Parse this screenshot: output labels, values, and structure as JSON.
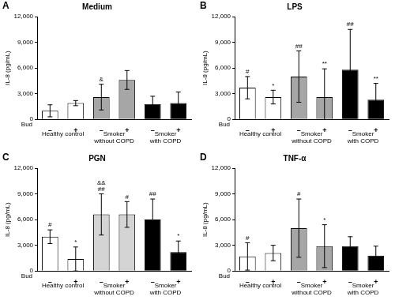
{
  "chart_data": [
    {
      "type": "bar",
      "panel": "A",
      "title": "Medium",
      "y_label": "IL-8 (pg/mL)",
      "x_label": "Bud",
      "categories": [
        "–",
        "+",
        "–",
        "+",
        "–",
        "+"
      ],
      "groups": [
        [
          "Healthy control"
        ],
        [
          "Smoker",
          "without COPD"
        ],
        [
          "Smoker",
          "with COPD"
        ]
      ],
      "values": [
        1000,
        1900,
        2600,
        4600,
        1800,
        1900
      ],
      "errors": [
        700,
        300,
        1500,
        1100,
        900,
        1300
      ],
      "annotations": [
        [],
        [],
        [
          "&"
        ],
        [],
        [],
        []
      ],
      "colors": [
        "#ffffff",
        "#ffffff",
        "#a6a6a6",
        "#a6a6a6",
        "#000000",
        "#000000"
      ],
      "ylim": [
        0,
        12000
      ],
      "yticks": [
        0,
        {
          "value": 3000,
          "label": "3,000"
        },
        {
          "value": 6000,
          "label": "6,000"
        },
        {
          "value": 9000,
          "label": "9,000"
        },
        {
          "value": 12000,
          "label": "12,000"
        }
      ],
      "grid": false
    },
    {
      "type": "bar",
      "panel": "B",
      "title": "LPS",
      "y_label": "IL-8 (pg/mL)",
      "x_label": "Bud",
      "categories": [
        "–",
        "+",
        "–",
        "+",
        "–",
        "+"
      ],
      "groups": [
        [
          "Healthy control"
        ],
        [
          "Smoker",
          "without COPD"
        ],
        [
          "Smoker",
          "with COPD"
        ]
      ],
      "values": [
        3700,
        2600,
        5000,
        2600,
        5800,
        2300
      ],
      "errors": [
        1300,
        800,
        3000,
        3300,
        4700,
        1900
      ],
      "annotations": [
        [
          "#"
        ],
        [
          "*"
        ],
        [
          "##"
        ],
        [
          "**"
        ],
        [
          "##"
        ],
        [
          "**"
        ]
      ],
      "colors": [
        "#ffffff",
        "#ffffff",
        "#a6a6a6",
        "#a6a6a6",
        "#000000",
        "#000000"
      ],
      "ylim": [
        0,
        12000
      ],
      "yticks": [
        0,
        {
          "value": 3000,
          "label": "3,000"
        },
        {
          "value": 6000,
          "label": "6,000"
        },
        {
          "value": 9000,
          "label": "9,000"
        },
        {
          "value": 12000,
          "label": "12,000"
        }
      ],
      "grid": false
    },
    {
      "type": "bar",
      "panel": "C",
      "title": "PGN",
      "y_label": "IL-8 (pg/mL)",
      "x_label": "Bud",
      "categories": [
        "–",
        "+",
        "–",
        "+",
        "–",
        "+"
      ],
      "groups": [
        [
          "Healthy control"
        ],
        [
          "Smoker",
          "without COPD"
        ],
        [
          "Smoker",
          "with COPD"
        ]
      ],
      "values": [
        4000,
        1400,
        6600,
        6600,
        6000,
        2200
      ],
      "errors": [
        800,
        1400,
        2400,
        1500,
        2400,
        1300
      ],
      "annotations": [
        [
          "#"
        ],
        [
          "*"
        ],
        [
          "##",
          "&&"
        ],
        [
          "#"
        ],
        [
          "##"
        ],
        [
          "*"
        ]
      ],
      "colors": [
        "#ffffff",
        "#ffffff",
        "#d4d4d4",
        "#d4d4d4",
        "#000000",
        "#000000"
      ],
      "ylim": [
        0,
        12000
      ],
      "yticks": [
        0,
        {
          "value": 3000,
          "label": "3,000"
        },
        {
          "value": 6000,
          "label": "6,000"
        },
        {
          "value": 9000,
          "label": "9,000"
        },
        {
          "value": 12000,
          "label": "12,000"
        }
      ],
      "grid": false
    },
    {
      "type": "bar",
      "panel": "D",
      "title": "TNF-α",
      "y_label": "IL-8 (pg/mL)",
      "x_label": "Bud",
      "categories": [
        "–",
        "+",
        "–",
        "+",
        "–",
        "+"
      ],
      "groups": [
        [
          "Healthy control"
        ],
        [
          "Smoker",
          "without COPD"
        ],
        [
          "Smoker",
          "with COPD"
        ]
      ],
      "values": [
        1700,
        2100,
        5000,
        2900,
        2900,
        1800
      ],
      "errors": [
        1600,
        900,
        3400,
        2500,
        1100,
        1100
      ],
      "annotations": [
        [
          "#"
        ],
        [],
        [
          "#"
        ],
        [
          "*"
        ],
        [],
        []
      ],
      "colors": [
        "#ffffff",
        "#ffffff",
        "#a6a6a6",
        "#a6a6a6",
        "#000000",
        "#000000"
      ],
      "ylim": [
        0,
        12000
      ],
      "yticks": [
        0,
        {
          "value": 3000,
          "label": "3,000"
        },
        {
          "value": 6000,
          "label": "6,000"
        },
        {
          "value": 9000,
          "label": "9,000"
        },
        {
          "value": 12000,
          "label": "12,000"
        }
      ],
      "grid": false
    }
  ]
}
